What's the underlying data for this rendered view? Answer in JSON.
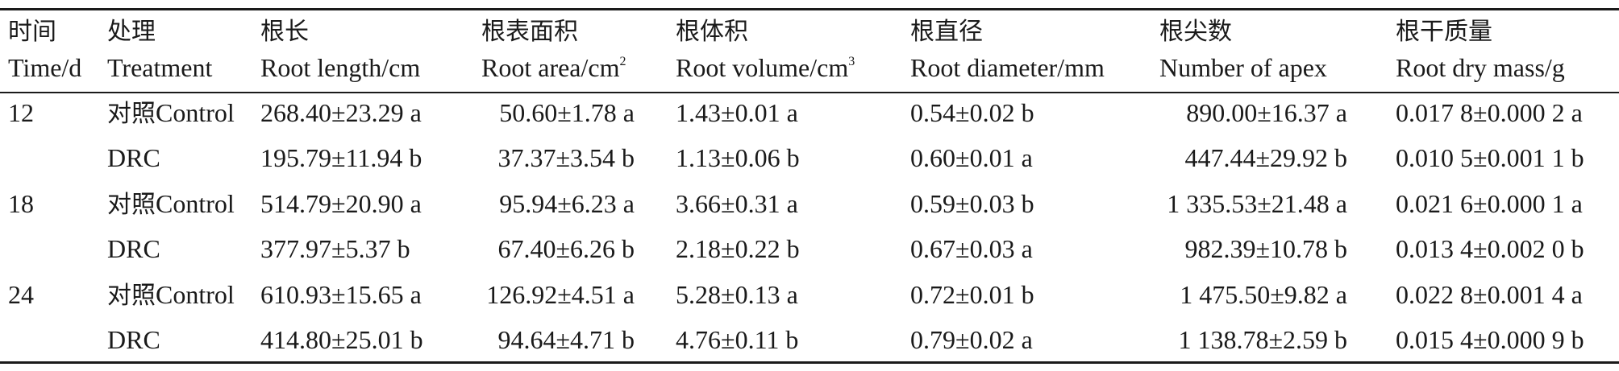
{
  "table": {
    "headers": [
      {
        "zh": "时间",
        "en": "Time/d"
      },
      {
        "zh": "处理",
        "en": "Treatment"
      },
      {
        "zh": "根长",
        "en": "Root length/cm"
      },
      {
        "zh": "根表面积",
        "en": "Root area/cm",
        "sup": "2"
      },
      {
        "zh": "根体积",
        "en": "Root volume/cm",
        "sup": "3"
      },
      {
        "zh": "根直径",
        "en": "Root diameter/mm"
      },
      {
        "zh": "根尖数",
        "en": "Number of apex"
      },
      {
        "zh": "根干质量",
        "en": "Root dry mass/g"
      }
    ],
    "rows": [
      {
        "time": "12",
        "treat_zh": "对照",
        "treat_en": "Control",
        "length": "268.40±23.29 a",
        "area": "50.60±1.78 a",
        "volume": "1.43±0.01 a",
        "diameter": "0.54±0.02 b",
        "apex": "890.00±16.37 a",
        "mass": "0.017 8±0.000 2 a"
      },
      {
        "time": "",
        "treat_zh": "",
        "treat_en": "DRC",
        "length": "195.79±11.94 b",
        "area": "37.37±3.54 b",
        "volume": "1.13±0.06 b",
        "diameter": "0.60±0.01 a",
        "apex": "447.44±29.92 b",
        "mass": "0.010 5±0.001 1 b"
      },
      {
        "time": "18",
        "treat_zh": "对照",
        "treat_en": "Control",
        "length": "514.79±20.90 a",
        "area": "95.94±6.23 a",
        "volume": "3.66±0.31 a",
        "diameter": "0.59±0.03 b",
        "apex": "1 335.53±21.48 a",
        "mass": "0.021 6±0.000 1 a"
      },
      {
        "time": "",
        "treat_zh": "",
        "treat_en": "DRC",
        "length": "377.97±5.37 b",
        "area": "67.40±6.26 b",
        "volume": "2.18±0.22 b",
        "diameter": "0.67±0.03 a",
        "apex": "982.39±10.78 b",
        "mass": "0.013 4±0.002 0 b"
      },
      {
        "time": "24",
        "treat_zh": "对照",
        "treat_en": "Control",
        "length": "610.93±15.65 a",
        "area": "126.92±4.51 a",
        "volume": "5.28±0.13 a",
        "diameter": "0.72±0.01 b",
        "apex": "1 475.50±9.82 a",
        "mass": "0.022 8±0.001 4 a"
      },
      {
        "time": "",
        "treat_zh": "",
        "treat_en": "DRC",
        "length": "414.80±25.01 b",
        "area": "94.64±4.71 b",
        "volume": "4.76±0.11 b",
        "diameter": "0.79±0.02 a",
        "apex": "1 138.78±2.59 b",
        "mass": "0.015 4±0.000 9 b"
      }
    ]
  }
}
